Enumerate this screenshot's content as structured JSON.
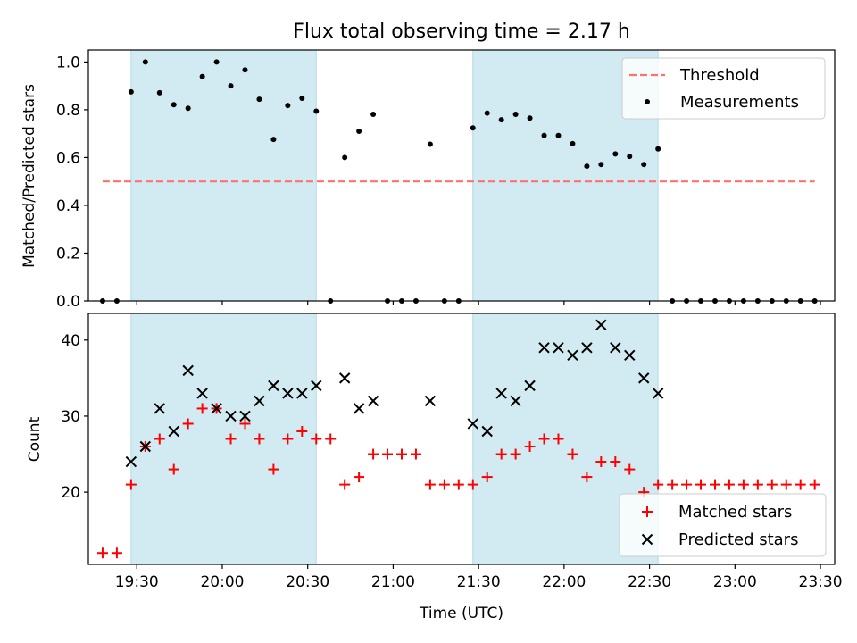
{
  "title": "Flux total observing time = 2.17 h",
  "colors": {
    "threshold": "#ff7070",
    "measurements": "#000000",
    "matched": "#ff0000",
    "predicted": "#000000",
    "shade": "#add8e6"
  },
  "chart_data": [
    {
      "type": "scatter",
      "xlabel": "",
      "ylabel": "Matched/Predicted stars",
      "xlim": [
        "19:13",
        "23:35"
      ],
      "ylim": [
        0,
        1.05
      ],
      "y_ticks": [
        0.0,
        0.2,
        0.4,
        0.6,
        0.8,
        1.0
      ],
      "y_tick_labels": [
        "0.0",
        "0.2",
        "0.4",
        "0.6",
        "0.8",
        "1.0"
      ],
      "grid": false,
      "legend_position": "top-right",
      "shaded_intervals": [
        [
          "19:28",
          "20:33"
        ],
        [
          "21:28",
          "22:33"
        ]
      ],
      "series": [
        {
          "name": "Threshold",
          "style": "dashed-line",
          "x": [
            "19:18",
            "23:28"
          ],
          "y": [
            0.5,
            0.5
          ]
        },
        {
          "name": "Measurements",
          "style": "dot",
          "x": [
            "19:18",
            "19:23",
            "19:28",
            "19:33",
            "19:38",
            "19:43",
            "19:48",
            "19:53",
            "19:58",
            "20:03",
            "20:08",
            "20:13",
            "20:18",
            "20:23",
            "20:28",
            "20:33",
            "20:38",
            "20:43",
            "20:48",
            "20:53",
            "20:58",
            "21:03",
            "21:08",
            "21:13",
            "21:18",
            "21:23",
            "21:28",
            "21:33",
            "21:38",
            "21:43",
            "21:48",
            "21:53",
            "21:58",
            "22:03",
            "22:08",
            "22:13",
            "22:18",
            "22:23",
            "22:28",
            "22:33",
            "22:38",
            "22:43",
            "22:48",
            "22:53",
            "22:58",
            "23:03",
            "23:08",
            "23:13",
            "23:18",
            "23:23",
            "23:28"
          ],
          "y": [
            0.0,
            0.0,
            0.875,
            1.0,
            0.871,
            0.821,
            0.806,
            0.939,
            1.0,
            0.9,
            0.967,
            0.844,
            0.676,
            0.818,
            0.848,
            0.794,
            0.0,
            0.6,
            0.71,
            0.781,
            0.0,
            0.0,
            0.0,
            0.656,
            0.0,
            0.0,
            0.724,
            0.786,
            0.758,
            0.781,
            0.765,
            0.692,
            0.692,
            0.658,
            0.564,
            0.571,
            0.615,
            0.605,
            0.571,
            0.636,
            0.0,
            0.0,
            0.0,
            0.0,
            0.0,
            0.0,
            0.0,
            0.0,
            0.0,
            0.0,
            0.0
          ]
        }
      ]
    },
    {
      "type": "scatter",
      "xlabel": "Time (UTC)",
      "ylabel": "Count",
      "xlim": [
        "19:13",
        "23:35"
      ],
      "ylim": [
        10.5,
        43.5
      ],
      "x_ticks": [
        "19:30",
        "20:00",
        "20:30",
        "21:00",
        "21:30",
        "22:00",
        "22:30",
        "23:00",
        "23:30"
      ],
      "y_ticks": [
        20,
        30,
        40
      ],
      "y_tick_labels": [
        "20",
        "30",
        "40"
      ],
      "grid": false,
      "legend_position": "bottom-right",
      "shaded_intervals": [
        [
          "19:28",
          "20:33"
        ],
        [
          "21:28",
          "22:33"
        ]
      ],
      "series": [
        {
          "name": "Matched stars",
          "style": "plus",
          "x": [
            "19:18",
            "19:23",
            "19:28",
            "19:33",
            "19:38",
            "19:43",
            "19:48",
            "19:53",
            "19:58",
            "20:03",
            "20:08",
            "20:13",
            "20:18",
            "20:23",
            "20:28",
            "20:33",
            "20:38",
            "20:43",
            "20:48",
            "20:53",
            "20:58",
            "21:03",
            "21:08",
            "21:13",
            "21:18",
            "21:23",
            "21:28",
            "21:33",
            "21:38",
            "21:43",
            "21:48",
            "21:53",
            "21:58",
            "22:03",
            "22:08",
            "22:13",
            "22:18",
            "22:23",
            "22:28",
            "22:33",
            "22:38",
            "22:43",
            "22:48",
            "22:53",
            "22:58",
            "23:03",
            "23:08",
            "23:13",
            "23:18",
            "23:23",
            "23:28"
          ],
          "y": [
            12,
            12,
            21,
            26,
            27,
            23,
            29,
            31,
            31,
            27,
            29,
            27,
            23,
            27,
            28,
            27,
            27,
            21,
            22,
            25,
            25,
            25,
            25,
            21,
            21,
            21,
            21,
            22,
            25,
            25,
            26,
            27,
            27,
            25,
            22,
            24,
            24,
            23,
            20,
            21,
            21,
            21,
            21,
            21,
            21,
            21,
            21,
            21,
            21,
            21,
            21
          ]
        },
        {
          "name": "Predicted stars",
          "style": "x",
          "x": [
            "19:28",
            "19:33",
            "19:38",
            "19:43",
            "19:48",
            "19:53",
            "19:58",
            "20:03",
            "20:08",
            "20:13",
            "20:18",
            "20:23",
            "20:28",
            "20:33",
            "20:43",
            "20:48",
            "20:53",
            "21:13",
            "21:28",
            "21:33",
            "21:38",
            "21:43",
            "21:48",
            "21:53",
            "21:58",
            "22:03",
            "22:08",
            "22:13",
            "22:18",
            "22:23",
            "22:28",
            "22:33"
          ],
          "y": [
            24,
            26,
            31,
            28,
            36,
            33,
            31,
            30,
            30,
            32,
            34,
            33,
            33,
            34,
            35,
            31,
            32,
            32,
            29,
            28,
            33,
            32,
            34,
            39,
            39,
            38,
            39,
            42,
            39,
            38,
            35,
            33
          ]
        }
      ]
    }
  ]
}
